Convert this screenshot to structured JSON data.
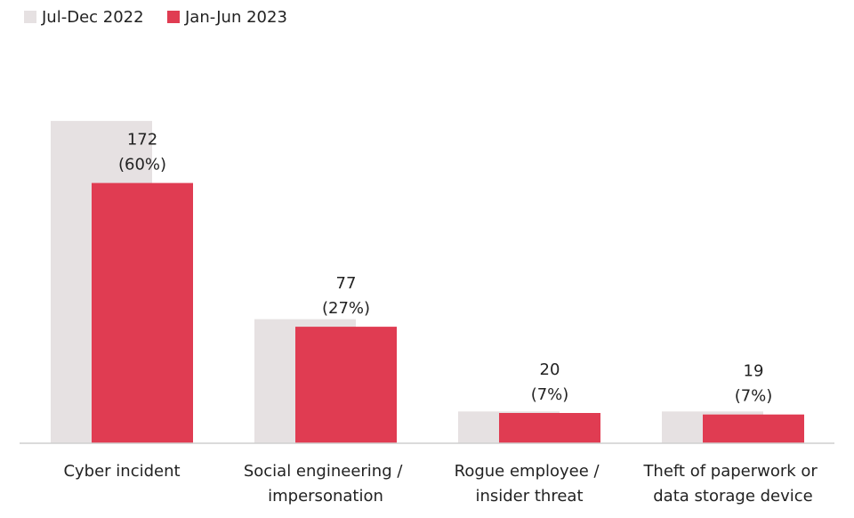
{
  "chart_data": {
    "type": "bar",
    "categories": [
      "Cyber incident",
      "Social engineering / impersonation",
      "Rogue employee / insider threat",
      "Theft of paperwork or data storage device"
    ],
    "series": [
      {
        "name": "Jul-Dec 2022",
        "color": "#e6e1e2",
        "values": [
          213,
          82,
          21,
          21
        ]
      },
      {
        "name": "Jan-Jun 2023",
        "color": "#e03c52",
        "values": [
          172,
          77,
          20,
          19
        ],
        "value_labels": [
          [
            "172",
            "(60%)"
          ],
          [
            "77",
            "(27%)"
          ],
          [
            "20",
            "(7%)"
          ],
          [
            "19",
            "(7%)"
          ]
        ]
      }
    ],
    "ylim": [
      0,
      220
    ],
    "legend": "top-left"
  }
}
